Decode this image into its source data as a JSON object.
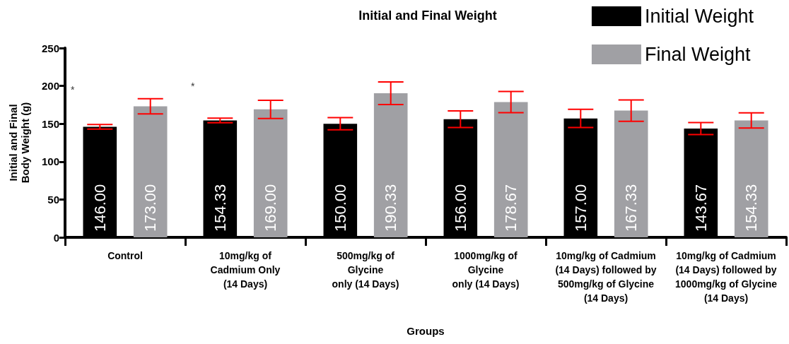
{
  "chart_data": {
    "type": "bar",
    "title": "Initial and Final Weight",
    "xlabel": "Groups",
    "ylabel": "Initial and Final\nBody Weight (g)",
    "categories": [
      "Control",
      "10mg/kg of\nCadmium Only\n(14 Days)",
      "500mg/kg of\nGlycine\nonly (14 Days)",
      "1000mg/kg of\nGlycine\nonly (14 Days)",
      "10mg/kg of Cadmium\n(14 Days) followed by\n500mg/kg of Glycine\n(14 Days)",
      "10mg/kg of Cadmium\n(14 Days) followed by\n1000mg/kg of Glycine\n(14 Days)"
    ],
    "series": [
      {
        "name": "Initial Weight",
        "color": "#000000",
        "values": [
          146.0,
          154.33,
          150.0,
          156.0,
          157.0,
          143.67
        ],
        "errors": [
          3,
          3,
          8,
          11,
          12,
          8
        ],
        "value_labels": [
          "146.00",
          "154.33",
          "150.00",
          "156.00",
          "157.00",
          "143.67"
        ]
      },
      {
        "name": "Final Weight",
        "color": "#a0a0a4",
        "values": [
          173.0,
          169.0,
          190.33,
          178.67,
          167.33,
          154.33
        ],
        "errors": [
          10,
          12,
          15,
          14,
          14,
          10
        ],
        "value_labels": [
          "173.00",
          "169.00",
          "190.33",
          "178.67",
          "167.33",
          "154.33"
        ]
      }
    ],
    "ylim": [
      0,
      250
    ],
    "yticks": [
      0,
      50,
      100,
      150,
      200,
      250
    ],
    "grid": false,
    "legend": "top right",
    "annotations": [
      "*",
      "*"
    ]
  }
}
